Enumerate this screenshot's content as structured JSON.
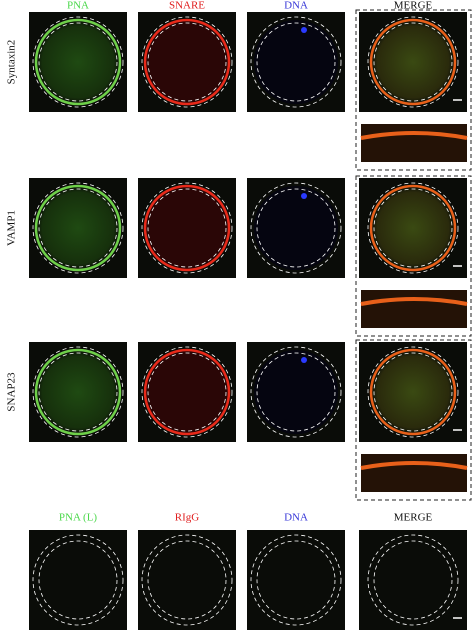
{
  "top_headers": [
    {
      "text": "PNA",
      "color": "#4cd84c"
    },
    {
      "text": "SNARE",
      "color": "#e02020"
    },
    {
      "text": "DNA",
      "color": "#3a3ad8"
    },
    {
      "text": "MERGE",
      "color": "#111111"
    }
  ],
  "rows": [
    {
      "label": "Syntaxin2"
    },
    {
      "label": "VAMP1"
    },
    {
      "label": "SNAP23"
    }
  ],
  "control_headers": [
    {
      "text": "PNA (L)",
      "color": "#4cd84c"
    },
    {
      "text": "RIgG",
      "color": "#e02020"
    },
    {
      "text": "DNA",
      "color": "#3a3ad8"
    },
    {
      "text": "MERGE",
      "color": "#111111"
    }
  ]
}
